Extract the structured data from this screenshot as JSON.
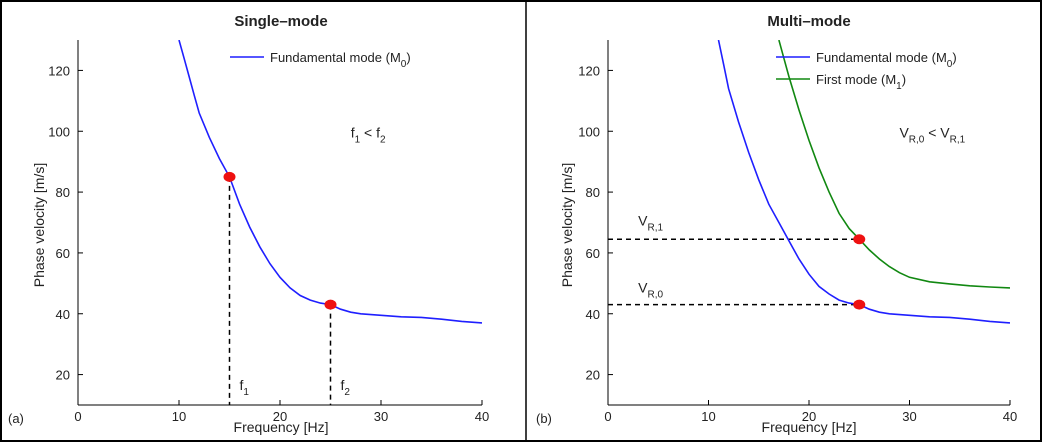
{
  "chart_data": [
    {
      "panel_label": "(a)",
      "type": "line",
      "title": "Single–mode",
      "xlabel": "Frequency [Hz]",
      "ylabel": "Phase velocity [m/s]",
      "xlim": [
        0,
        40
      ],
      "ylim": [
        10,
        130
      ],
      "xticks": [
        0,
        10,
        20,
        30,
        40
      ],
      "yticks": [
        20,
        40,
        60,
        80,
        100,
        120
      ],
      "legend_position": "top-right",
      "series": [
        {
          "name": "Fundamental mode (M0)",
          "label_main": "Fundamental mode (M",
          "label_sub": "0",
          "label_end": ")",
          "color": "#1f1fff",
          "x": [
            10.0,
            10.5,
            11.0,
            11.5,
            12.0,
            13.0,
            14.0,
            15.0,
            16.0,
            17.0,
            18.0,
            19.0,
            20.0,
            21.0,
            22.0,
            23.0,
            24.0,
            25.0,
            26.0,
            27.0,
            28.0,
            30.0,
            32.0,
            34.0,
            36.0,
            38.0,
            40.0
          ],
          "y": [
            130.0,
            124.0,
            118.0,
            112.0,
            106.0,
            98.0,
            91.0,
            85.0,
            76.0,
            68.5,
            62.0,
            56.5,
            52.0,
            48.5,
            46.0,
            44.5,
            43.5,
            43.0,
            41.5,
            40.5,
            40.0,
            39.5,
            39.0,
            38.8,
            38.2,
            37.5,
            37.0
          ]
        }
      ],
      "markers": [
        {
          "x": 15,
          "y": 85,
          "color": "#ee1111"
        },
        {
          "x": 25,
          "y": 43,
          "color": "#ee1111"
        }
      ],
      "vlines": [
        {
          "x": 15,
          "y_to": 85,
          "label": "f",
          "sub": "1",
          "label_y": 15
        },
        {
          "x": 25,
          "y_to": 43,
          "label": "f",
          "sub": "2",
          "label_y": 15
        }
      ],
      "hlines": [],
      "annotation": {
        "parts": [
          "f",
          "1",
          " < f",
          "2"
        ],
        "x": 27,
        "y": 98
      }
    },
    {
      "panel_label": "(b)",
      "type": "line",
      "title": "Multi–mode",
      "xlabel": "Frequency [Hz]",
      "ylabel": "Phase velocity [m/s]",
      "xlim": [
        0,
        40
      ],
      "ylim": [
        10,
        130
      ],
      "xticks": [
        0,
        10,
        20,
        30,
        40
      ],
      "yticks": [
        20,
        40,
        60,
        80,
        100,
        120
      ],
      "legend_position": "top-right",
      "series": [
        {
          "name": "Fundamental mode (M0)",
          "label_main": "Fundamental mode (M",
          "label_sub": "0",
          "label_end": ")",
          "color": "#1f1fff",
          "x": [
            11.0,
            11.5,
            12.0,
            13.0,
            14.0,
            15.0,
            16.0,
            17.0,
            18.0,
            19.0,
            20.0,
            21.0,
            22.0,
            23.0,
            24.0,
            25.0,
            26.0,
            27.0,
            28.0,
            30.0,
            32.0,
            34.0,
            36.0,
            38.0,
            40.0
          ],
          "y": [
            130.0,
            122.0,
            114.0,
            103.0,
            93.0,
            84.0,
            76.0,
            70.0,
            64.0,
            58.0,
            53.0,
            49.0,
            46.5,
            44.5,
            43.5,
            43.0,
            41.5,
            40.5,
            40.0,
            39.5,
            39.0,
            38.8,
            38.2,
            37.5,
            37.0
          ]
        },
        {
          "name": "First mode (M1)",
          "label_main": "First mode (M",
          "label_sub": "1",
          "label_end": ")",
          "color": "#118811",
          "x": [
            17.0,
            17.5,
            18.0,
            19.0,
            20.0,
            21.0,
            22.0,
            23.0,
            24.0,
            25.0,
            26.0,
            27.0,
            28.0,
            29.0,
            30.0,
            32.0,
            34.0,
            36.0,
            38.0,
            40.0
          ],
          "y": [
            130.0,
            124.0,
            118.0,
            107.0,
            97.0,
            88.0,
            80.0,
            73.0,
            68.0,
            64.5,
            61.0,
            58.0,
            55.5,
            53.5,
            52.0,
            50.5,
            49.8,
            49.2,
            48.8,
            48.5
          ]
        }
      ],
      "markers": [
        {
          "x": 25,
          "y": 64.5,
          "color": "#ee1111"
        },
        {
          "x": 25,
          "y": 43,
          "color": "#ee1111"
        }
      ],
      "vlines": [],
      "hlines": [
        {
          "y": 64.5,
          "x_to": 25,
          "label": "V",
          "sub": "R,1",
          "label_x": 3,
          "label_y": 69
        },
        {
          "y": 43,
          "x_to": 25,
          "label": "V",
          "sub": "R,0",
          "label_x": 3,
          "label_y": 47
        }
      ],
      "annotation": {
        "parts": [
          "V",
          "R,0",
          " < V",
          "R,1"
        ],
        "x": 29,
        "y": 98
      }
    }
  ]
}
